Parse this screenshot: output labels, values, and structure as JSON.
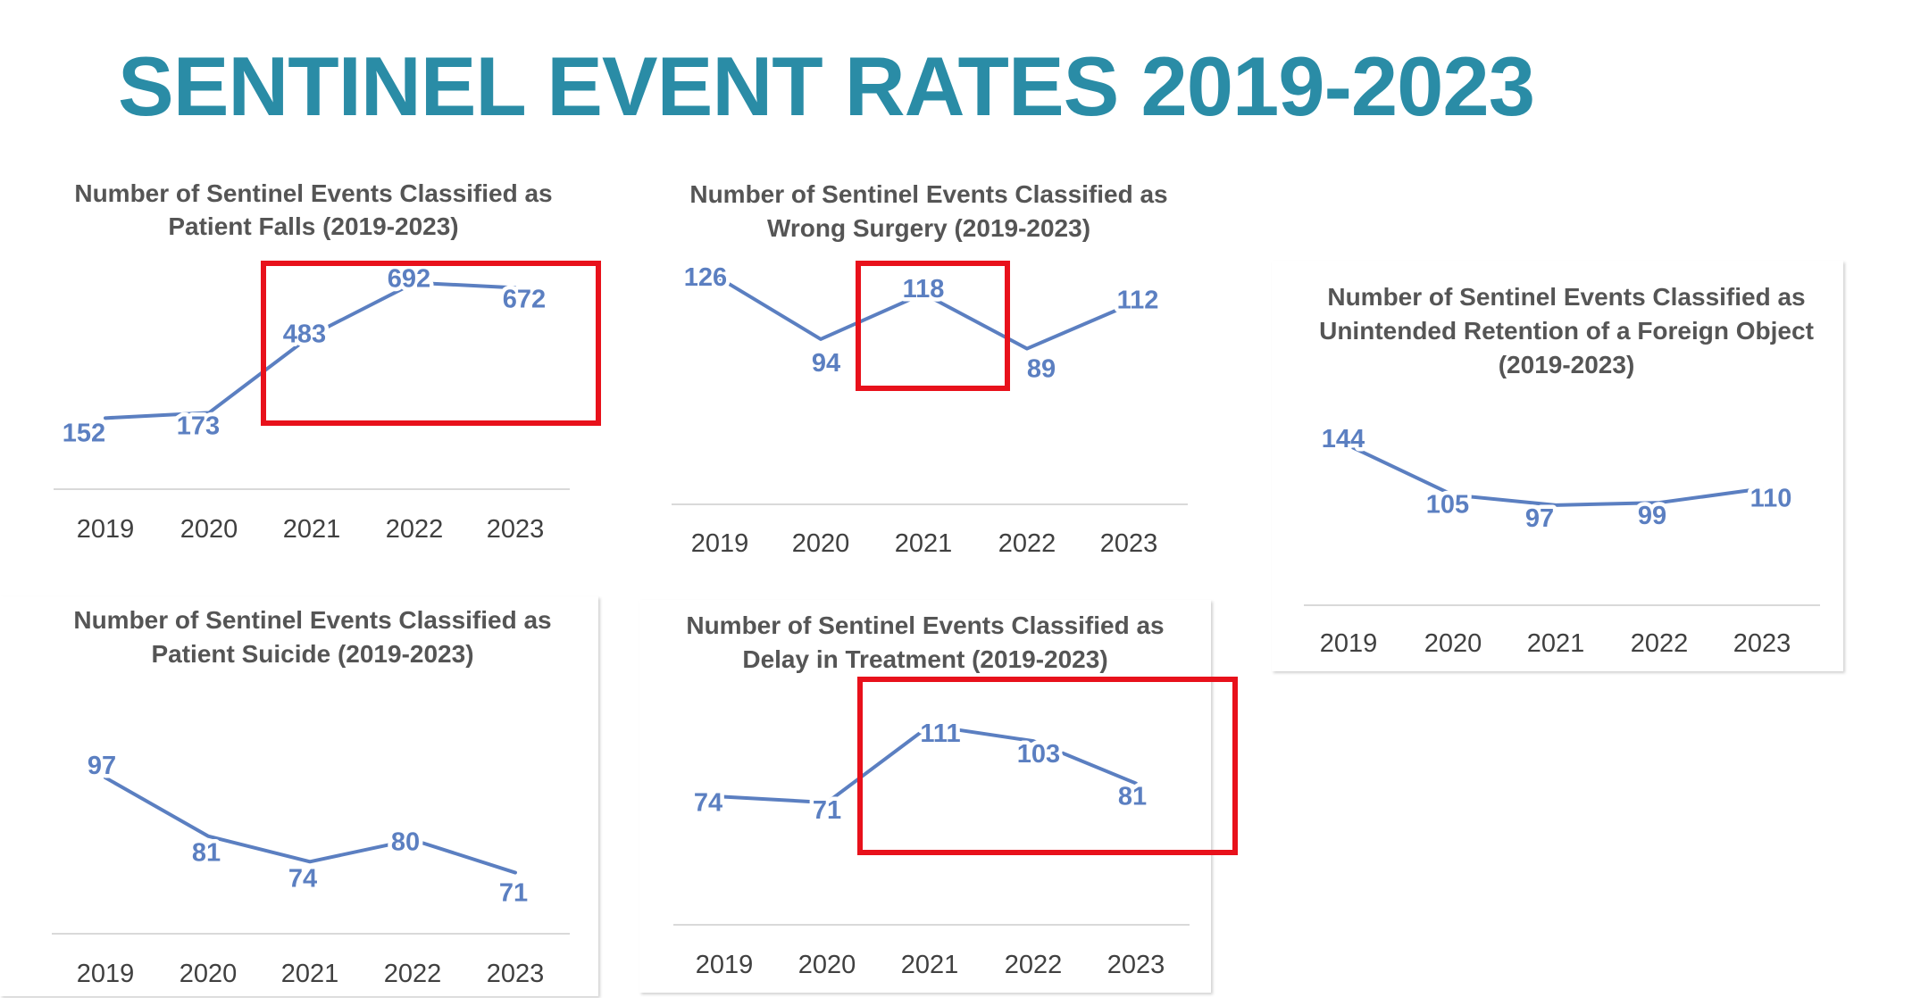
{
  "page": {
    "title": "SENTINEL EVENT RATES 2019-2023",
    "title_color": "#2a8ca6"
  },
  "colors": {
    "line": "#5b7fc1",
    "axis": "#d9d9d9",
    "highlight": "#e8111b"
  },
  "chart_data": [
    {
      "id": "falls",
      "type": "line",
      "title_lines": [
        "Number of Sentinel Events Classified as",
        "Patient Falls (2019-2023)"
      ],
      "categories": [
        "2019",
        "2020",
        "2021",
        "2022",
        "2023"
      ],
      "values": [
        152,
        173,
        483,
        692,
        672
      ],
      "ylim": [
        0,
        780
      ],
      "highlighted_categories": [
        "2021",
        "2022",
        "2023"
      ]
    },
    {
      "id": "wrong-surgery",
      "type": "line",
      "title_lines": [
        "Number of Sentinel Events Classified as",
        "Wrong Surgery (2019-2023)"
      ],
      "categories": [
        "2019",
        "2020",
        "2021",
        "2022",
        "2023"
      ],
      "values": [
        126,
        94,
        118,
        89,
        112
      ],
      "ylim": [
        0,
        140
      ],
      "highlighted_categories": [
        "2021"
      ]
    },
    {
      "id": "foreign-object",
      "type": "line",
      "title_lines": [
        "Number of Sentinel Events Classified as",
        "Unintended Retention of a Foreign Object",
        "(2019-2023)"
      ],
      "categories": [
        "2019",
        "2020",
        "2021",
        "2022",
        "2023"
      ],
      "values": [
        144,
        105,
        97,
        99,
        110
      ],
      "ylim": [
        0,
        170
      ],
      "highlighted_categories": []
    },
    {
      "id": "suicide",
      "type": "line",
      "title_lines": [
        "Number of Sentinel Events Classified as",
        "Patient Suicide (2019-2023)"
      ],
      "categories": [
        "2019",
        "2020",
        "2021",
        "2022",
        "2023"
      ],
      "values": [
        97,
        81,
        74,
        80,
        71
      ],
      "ylim": [
        0,
        110
      ],
      "highlighted_categories": []
    },
    {
      "id": "delay-treatment",
      "type": "line",
      "title_lines": [
        "Number of Sentinel Events Classified as",
        "Delay in Treatment (2019-2023)"
      ],
      "categories": [
        "2019",
        "2020",
        "2021",
        "2022",
        "2023"
      ],
      "values": [
        74,
        71,
        111,
        103,
        81
      ],
      "ylim": [
        0,
        130
      ],
      "highlighted_categories": [
        "2021",
        "2022",
        "2023"
      ]
    }
  ]
}
